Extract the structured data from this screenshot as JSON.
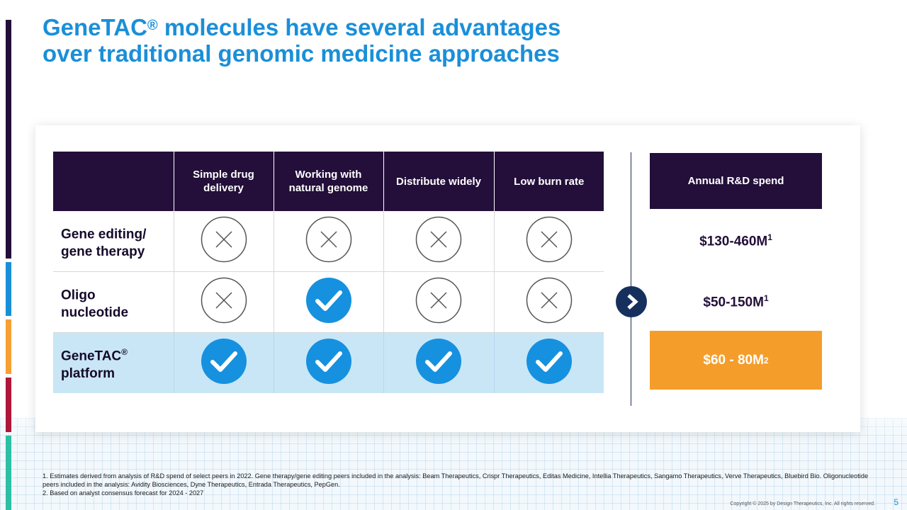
{
  "title": {
    "line1_pre": "GeneTAC",
    "line1_sup": "®",
    "line1_post": " molecules have several advantages",
    "line2": "over traditional genomic medicine approaches"
  },
  "colors": {
    "accent_blue": "#1a8fd8",
    "header_purple": "#230f3a",
    "highlight_blue": "#c9e6f7",
    "highlight_orange": "#f59d2a",
    "check_blue": "#1691df",
    "arrow_navy": "#16305e"
  },
  "side_bar_colors": [
    "#230f3a",
    "#1a8fd8",
    "#f5a033",
    "#b0163a",
    "#2bbfa5"
  ],
  "table": {
    "columns": [
      {
        "line1": "Simple drug",
        "line2": "delivery"
      },
      {
        "line1": "Working with",
        "line2": "natural genome"
      },
      {
        "line1": "Distribute widely",
        "line2": ""
      },
      {
        "line1": "Low burn rate",
        "line2": ""
      }
    ],
    "rows": [
      {
        "label_line1": "Gene editing/",
        "label_line2": "gene therapy",
        "label_sup": "",
        "marks": [
          "cross-icon",
          "cross-icon",
          "cross-icon",
          "cross-icon"
        ]
      },
      {
        "label_line1": "Oligo",
        "label_line2": "nucleotide",
        "label_sup": "",
        "marks": [
          "cross-icon",
          "check-icon",
          "cross-icon",
          "cross-icon"
        ]
      },
      {
        "label_line1": "GeneTAC",
        "label_line2": "platform",
        "label_sup": "®",
        "marks": [
          "check-icon",
          "check-icon",
          "check-icon",
          "check-icon"
        ]
      }
    ]
  },
  "arrow_icon": "play-arrow-icon",
  "spend": {
    "header": "Annual R&D spend",
    "values": [
      {
        "value": "$130-460M",
        "sup": "1"
      },
      {
        "value": "$50-150M",
        "sup": "1"
      },
      {
        "value": "$60 - 80M",
        "sup": "2"
      }
    ]
  },
  "footnotes": {
    "note1": "1. Estimates derived from analysis of R&D spend of select peers in 2022. Gene therapy/gene editing peers included in the analysis: Beam Therapeutics, Crispr Therapeutics, Editas Medicine, Intellia Therapeutics, Sangamo Therapeutics, Verve Therapeutics, Bluebird Bio. Oligonucleotide peers included in the analysis: Avidity Biosciences, Dyne Therapeutics, Entrada Therapeutics, PepGen.",
    "note2": "2. Based on analyst consensus forecast for 2024 - 2027"
  },
  "copyright": "Copyright © 2025 by Design Therapeutics, Inc. All rights reserved.",
  "page_number": "5"
}
